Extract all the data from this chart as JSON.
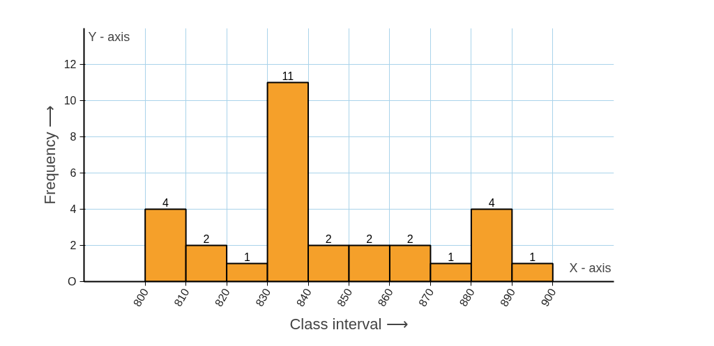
{
  "chart_data": {
    "type": "histogram",
    "bins": [
      800,
      810,
      820,
      830,
      840,
      850,
      860,
      870,
      880,
      890,
      900
    ],
    "values": [
      4,
      2,
      1,
      11,
      2,
      2,
      2,
      1,
      4,
      1
    ],
    "color": "#f5a02a",
    "xlabel": "Class interval ⟶",
    "ylabel": "Frequency ⟶",
    "annotations": [
      "Y - axis",
      "X - axis"
    ],
    "xlim": [
      785,
      915
    ],
    "ylim": [
      0,
      14
    ],
    "xticks": [
      800,
      810,
      820,
      830,
      840,
      850,
      860,
      870,
      880,
      890,
      900
    ],
    "yticks": [
      {
        "value": 0,
        "label": "O"
      },
      2,
      4,
      6,
      8,
      10,
      12
    ],
    "data_labels": true,
    "grid": true
  }
}
